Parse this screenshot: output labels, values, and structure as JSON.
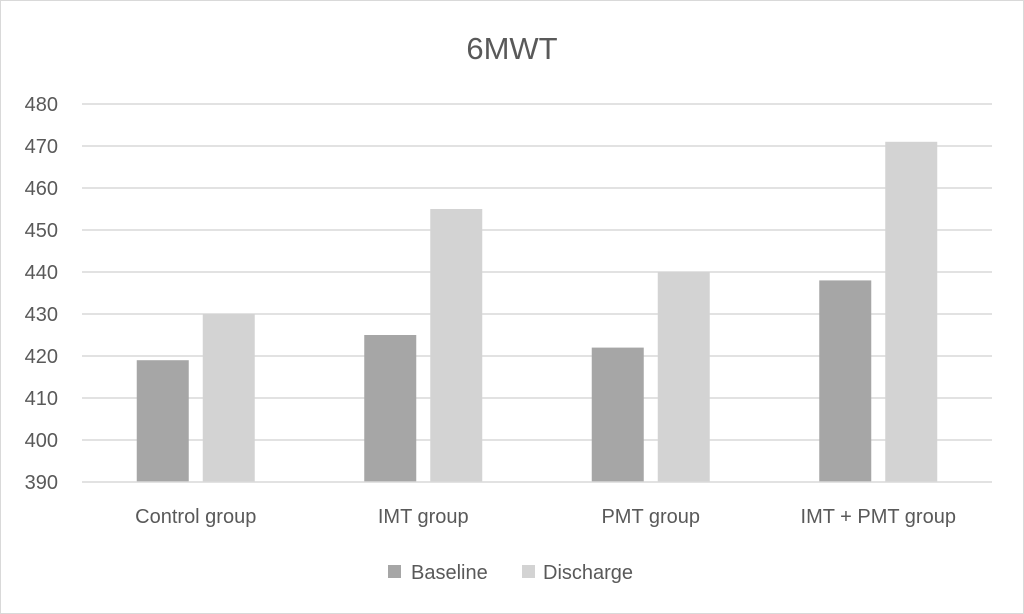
{
  "chart_data": {
    "type": "bar",
    "title": "6MWT",
    "xlabel": "",
    "ylabel": "",
    "categories": [
      "Control group",
      "IMT group",
      "PMT group",
      "IMT + PMT group"
    ],
    "series": [
      {
        "name": "Baseline",
        "color": "#a6a6a6",
        "values": [
          419,
          425,
          422,
          438
        ]
      },
      {
        "name": "Discharge",
        "color": "#d3d3d3",
        "values": [
          430,
          455,
          440,
          471
        ]
      }
    ],
    "ylim": [
      390,
      480
    ],
    "yticks": [
      "390",
      "400",
      "410",
      "420",
      "430",
      "440",
      "450",
      "460",
      "470",
      "480"
    ],
    "grid": true,
    "legend_position": "bottom"
  }
}
